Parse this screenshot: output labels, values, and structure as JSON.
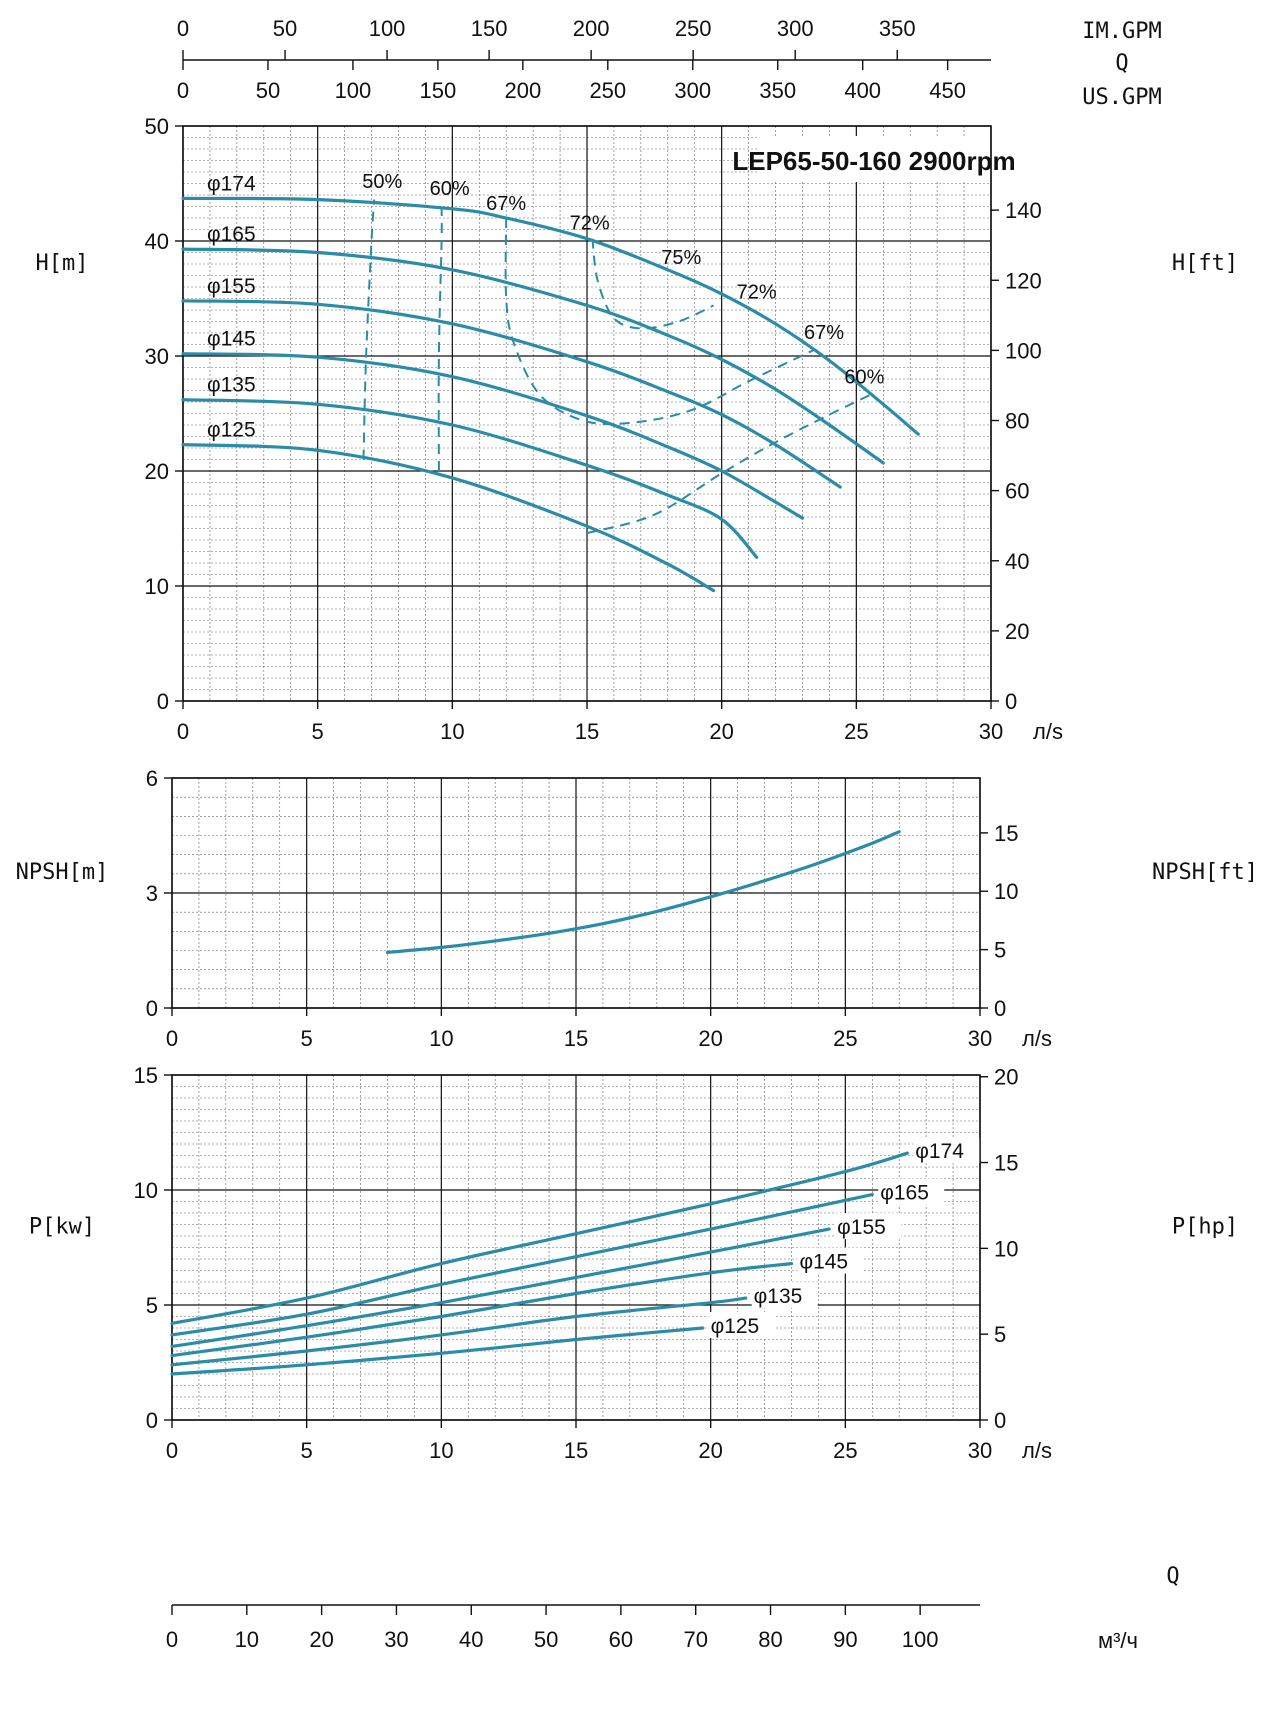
{
  "chart_data": [
    {
      "type": "line",
      "title": "LEP65-50-160 2900rpm",
      "xlabel": "л/s",
      "ylabel": "H[m]",
      "y2label": "H[ft]",
      "xlim": [
        0,
        30
      ],
      "ylim": [
        0,
        50
      ],
      "y2lim": [
        0,
        164
      ],
      "x_ticks": [
        "0",
        "5",
        "10",
        "15",
        "20",
        "25",
        "30"
      ],
      "y_ticks": [
        "0",
        "10",
        "20",
        "30",
        "40",
        "50"
      ],
      "y2_ticks": [
        "0",
        "20",
        "40",
        "60",
        "80",
        "100",
        "120",
        "140"
      ],
      "grid": true,
      "top_axes": {
        "label": "Q",
        "imperial": {
          "unit": "IM.GPM",
          "ticks": [
            "0",
            "50",
            "100",
            "150",
            "200",
            "250",
            "300",
            "350"
          ]
        },
        "us": {
          "unit": "US.GPM",
          "ticks": [
            "0",
            "50",
            "100",
            "150",
            "200",
            "250",
            "300",
            "350",
            "400",
            "450"
          ]
        }
      },
      "series": [
        {
          "name": "φ174",
          "x": [
            0,
            5,
            10,
            12,
            15,
            18,
            20,
            22,
            24,
            26,
            27.3
          ],
          "y": [
            43.7,
            43.6,
            42.8,
            42,
            40.2,
            37.5,
            35.4,
            32.8,
            29.6,
            25.8,
            23.2
          ]
        },
        {
          "name": "φ165",
          "x": [
            0,
            5,
            10,
            15,
            18,
            20,
            22,
            24,
            26
          ],
          "y": [
            39.3,
            39.0,
            37.5,
            34.4,
            31.8,
            29.7,
            27.1,
            24.0,
            20.7
          ]
        },
        {
          "name": "φ155",
          "x": [
            0,
            5,
            10,
            15,
            18,
            20,
            22,
            24.4
          ],
          "y": [
            34.8,
            34.5,
            32.8,
            29.5,
            26.9,
            24.9,
            22.3,
            18.6
          ]
        },
        {
          "name": "φ145",
          "x": [
            0,
            5,
            10,
            15,
            18,
            20,
            22,
            23
          ],
          "y": [
            30.2,
            29.9,
            28.2,
            24.8,
            22.1,
            20.0,
            17.3,
            15.9
          ]
        },
        {
          "name": "φ135",
          "x": [
            0,
            5,
            10,
            15,
            18,
            20,
            21.3
          ],
          "y": [
            26.2,
            25.8,
            24.0,
            20.5,
            17.9,
            15.8,
            12.5
          ]
        },
        {
          "name": "φ125",
          "x": [
            0,
            5,
            10,
            15,
            18,
            19.7
          ],
          "y": [
            22.3,
            21.8,
            19.4,
            15.2,
            11.9,
            9.6
          ]
        }
      ],
      "efficiency_lines": [
        {
          "label": "50%",
          "x": [
            6.7,
            6.8,
            7.0,
            7.1
          ],
          "y": [
            21,
            30,
            40,
            43.6
          ]
        },
        {
          "label": "60%",
          "x": [
            9.5,
            9.5,
            9.6,
            9.6
          ],
          "y": [
            20,
            30,
            40,
            42.9
          ]
        },
        {
          "label": "60%",
          "x": [
            15.0,
            17.5,
            20.0,
            22.0,
            24.0,
            25.5
          ],
          "y": [
            14.6,
            16.2,
            19.8,
            22.5,
            24.9,
            26.6
          ]
        },
        {
          "label": "67%",
          "x": [
            12.0,
            12.0,
            12.3,
            13.3,
            15.0,
            17.0,
            19.0,
            21.0,
            23.4
          ],
          "y": [
            42.0,
            35.0,
            31.0,
            26.5,
            24.3,
            24.3,
            25.4,
            27.8,
            30.5
          ]
        },
        {
          "label": "72%",
          "x": [
            15.2,
            15.4,
            16.0,
            17.0,
            18.4,
            19.7
          ],
          "y": [
            40.2,
            36.5,
            33.3,
            32.4,
            33.0,
            34.4
          ]
        },
        {
          "label": "75%",
          "x": [
            18.8
          ],
          "y": [
            36.7
          ]
        }
      ],
      "efficiency_labels": [
        {
          "text": "50%",
          "x": 7.4,
          "y": 44.6
        },
        {
          "text": "60%",
          "x": 9.9,
          "y": 44.0
        },
        {
          "text": "67%",
          "x": 12.0,
          "y": 42.7
        },
        {
          "text": "72%",
          "x": 15.1,
          "y": 41.0
        },
        {
          "text": "75%",
          "x": 18.5,
          "y": 38.0
        },
        {
          "text": "72%",
          "x": 21.3,
          "y": 35.0
        },
        {
          "text": "67%",
          "x": 23.8,
          "y": 31.5
        },
        {
          "text": "60%",
          "x": 25.3,
          "y": 27.6
        }
      ]
    },
    {
      "type": "line",
      "xlabel": "л/s",
      "ylabel": "NPSH[m]",
      "y2label": "NPSH[ft]",
      "xlim": [
        0,
        30
      ],
      "ylim": [
        0,
        6
      ],
      "y2lim": [
        0,
        19.7
      ],
      "x_ticks": [
        "0",
        "5",
        "10",
        "15",
        "20",
        "25",
        "30"
      ],
      "y_ticks": [
        "0",
        "3",
        "6"
      ],
      "y2_ticks": [
        "0",
        "5",
        "10",
        "15"
      ],
      "grid": true,
      "series": [
        {
          "name": "NPSH",
          "x": [
            8,
            10,
            12,
            14,
            16,
            18,
            20,
            22,
            24,
            26,
            27
          ],
          "y": [
            1.45,
            1.58,
            1.75,
            1.95,
            2.2,
            2.52,
            2.9,
            3.32,
            3.78,
            4.3,
            4.6
          ]
        }
      ]
    },
    {
      "type": "line",
      "xlabel": "л/s",
      "ylabel": "P[kw]",
      "y2label": "P[hp]",
      "xlim": [
        0,
        30
      ],
      "ylim": [
        0,
        15
      ],
      "y2lim": [
        0,
        20.1
      ],
      "x_ticks": [
        "0",
        "5",
        "10",
        "15",
        "20",
        "25",
        "30"
      ],
      "y_ticks": [
        "0",
        "5",
        "10",
        "15"
      ],
      "y2_ticks": [
        "0",
        "5",
        "10",
        "15",
        "20"
      ],
      "grid": true,
      "bottom_axis": {
        "label": "Q",
        "unit": "м³/ч",
        "ticks": [
          "0",
          "10",
          "20",
          "30",
          "40",
          "50",
          "60",
          "70",
          "80",
          "90",
          "100"
        ]
      },
      "series": [
        {
          "name": "φ174",
          "x": [
            0,
            5,
            10,
            15,
            20,
            25,
            27.3
          ],
          "y": [
            4.2,
            5.3,
            6.8,
            8.1,
            9.4,
            10.8,
            11.6
          ]
        },
        {
          "name": "φ165",
          "x": [
            0,
            5,
            10,
            15,
            20,
            26
          ],
          "y": [
            3.7,
            4.6,
            5.9,
            7.1,
            8.3,
            9.8
          ]
        },
        {
          "name": "φ155",
          "x": [
            0,
            5,
            10,
            15,
            20,
            24.4
          ],
          "y": [
            3.2,
            4.1,
            5.1,
            6.2,
            7.3,
            8.3
          ]
        },
        {
          "name": "φ145",
          "x": [
            0,
            5,
            10,
            15,
            20,
            23
          ],
          "y": [
            2.8,
            3.6,
            4.5,
            5.5,
            6.4,
            6.8
          ]
        },
        {
          "name": "φ135",
          "x": [
            0,
            5,
            10,
            15,
            20,
            21.3
          ],
          "y": [
            2.4,
            3.0,
            3.7,
            4.5,
            5.1,
            5.3
          ]
        },
        {
          "name": "φ125",
          "x": [
            0,
            5,
            10,
            15,
            19.7
          ],
          "y": [
            2.0,
            2.4,
            2.9,
            3.5,
            4.0
          ]
        }
      ]
    }
  ]
}
